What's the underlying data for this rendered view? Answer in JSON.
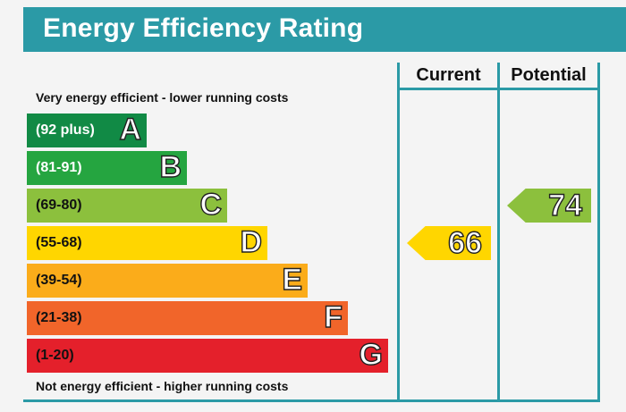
{
  "header": {
    "title": "Energy Efficiency Rating"
  },
  "columns": {
    "current": "Current",
    "potential": "Potential"
  },
  "captions": {
    "top": "Very energy efficient - lower running costs",
    "bottom": "Not energy efficient - higher running costs"
  },
  "chart_data": {
    "type": "bar",
    "title": "Energy Efficiency Rating",
    "categories": [
      "A",
      "B",
      "C",
      "D",
      "E",
      "F",
      "G"
    ],
    "ranges": [
      "(92 plus)",
      "(81-91)",
      "(69-80)",
      "(55-68)",
      "(39-54)",
      "(21-38)",
      "(1-20)"
    ],
    "colors": [
      "#118a45",
      "#25a540",
      "#8cc03d",
      "#ffd600",
      "#fbac1a",
      "#f1652a",
      "#e4202b"
    ],
    "range_colors": [
      "#ffffff",
      "#ffffff",
      "#111111",
      "#111111",
      "#111111",
      "#111111",
      "#111111"
    ],
    "current": {
      "value": 66,
      "band": "D",
      "color": "#ffd600"
    },
    "potential": {
      "value": 74,
      "band": "C",
      "color": "#8cc03d"
    }
  }
}
